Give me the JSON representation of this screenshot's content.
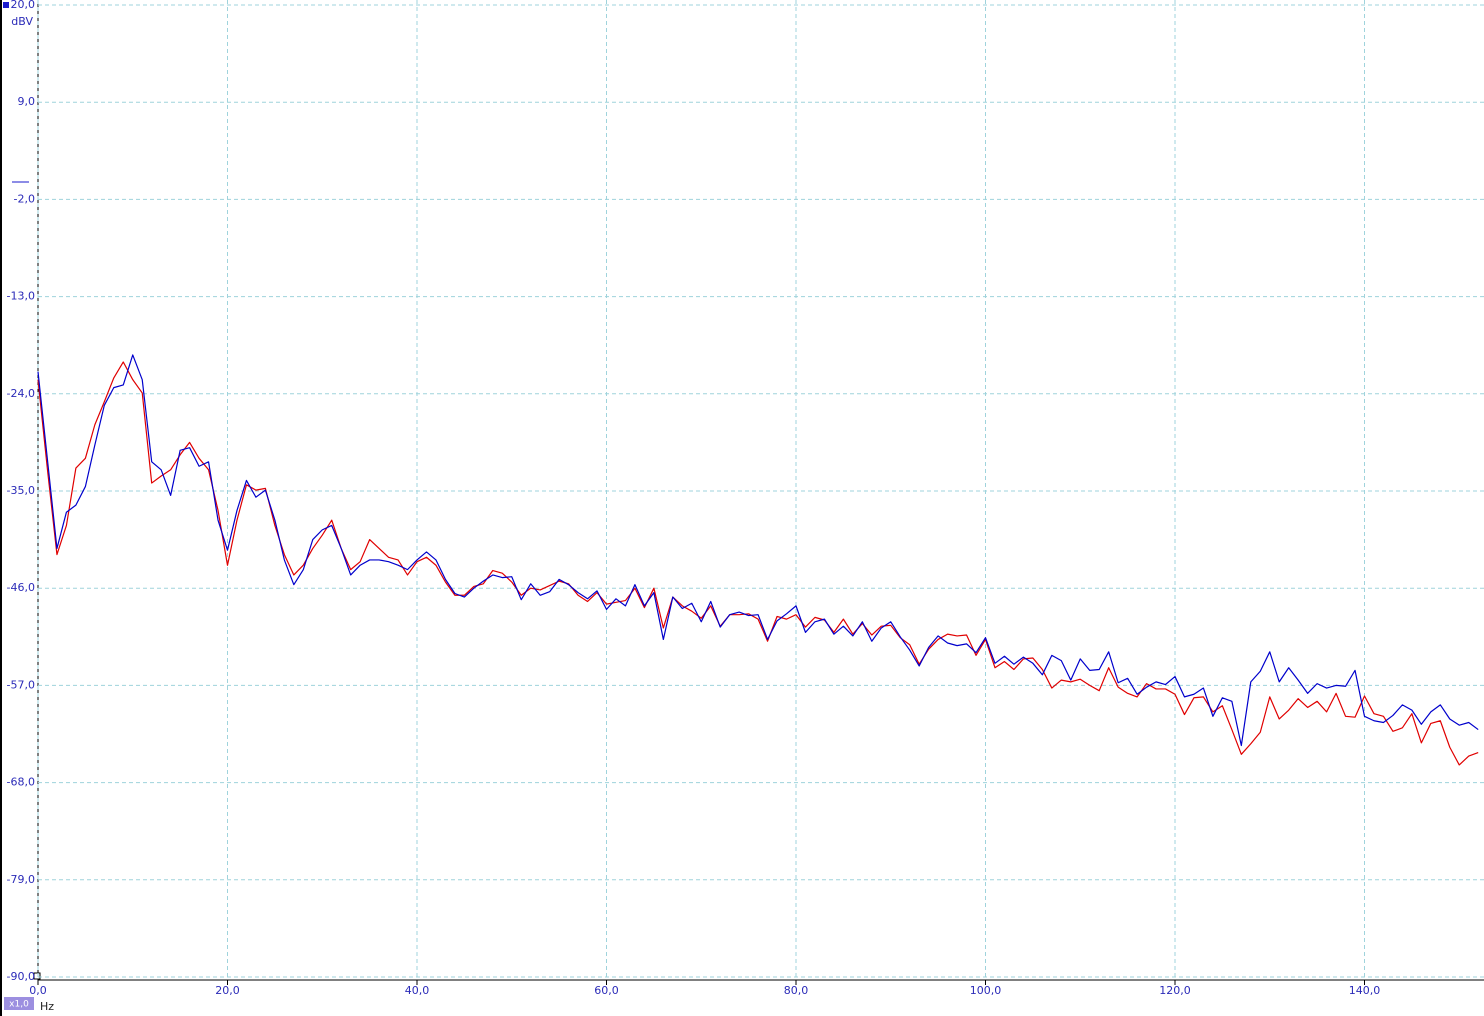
{
  "chart_data": {
    "type": "line",
    "y_unit": "dBV",
    "x_unit": "Hz",
    "zoom": "x1,0",
    "xlim": [
      0,
      152.6
    ],
    "ylim": [
      -90,
      20
    ],
    "xticks": [
      {
        "value": 0,
        "label": "0,0"
      },
      {
        "value": 20,
        "label": "20,0"
      },
      {
        "value": 40,
        "label": "40,0"
      },
      {
        "value": 60,
        "label": "60,0"
      },
      {
        "value": 80,
        "label": "80,0"
      },
      {
        "value": 100,
        "label": "100,0"
      },
      {
        "value": 120,
        "label": "120,0"
      },
      {
        "value": 140,
        "label": "140,0"
      }
    ],
    "yticks": [
      {
        "value": 20,
        "label": "20,0"
      },
      {
        "value": 9,
        "label": "9,0"
      },
      {
        "value": -2,
        "label": "-2,0"
      },
      {
        "value": -13,
        "label": "-13,0"
      },
      {
        "value": -24,
        "label": "-24,0"
      },
      {
        "value": -35,
        "label": "-35,0"
      },
      {
        "value": -46,
        "label": "-46,0"
      },
      {
        "value": -57,
        "label": "-57,0"
      },
      {
        "value": -68,
        "label": "-68,0"
      },
      {
        "value": -79,
        "label": "-79,0"
      },
      {
        "value": -90,
        "label": "-90,0"
      }
    ],
    "grid": true,
    "x": [
      0,
      1,
      2,
      3,
      4,
      5,
      6,
      7,
      8,
      9,
      10,
      11,
      12,
      13,
      14,
      15,
      16,
      17,
      18,
      19,
      20,
      21,
      22,
      23,
      24,
      25,
      26,
      27,
      28,
      29,
      30,
      31,
      32,
      33,
      34,
      35,
      36,
      37,
      38,
      39,
      40,
      41,
      42,
      43,
      44,
      45,
      46,
      47,
      48,
      49,
      50,
      51,
      52,
      53,
      54,
      55,
      56,
      57,
      58,
      59,
      60,
      61,
      62,
      63,
      64,
      65,
      66,
      67,
      68,
      69,
      70,
      71,
      72,
      73,
      74,
      75,
      76,
      77,
      78,
      79,
      80,
      81,
      82,
      83,
      84,
      85,
      86,
      87,
      88,
      89,
      90,
      91,
      92,
      93,
      94,
      95,
      96,
      97,
      98,
      99,
      100,
      101,
      102,
      103,
      104,
      105,
      106,
      107,
      108,
      109,
      110,
      111,
      112,
      113,
      114,
      115,
      116,
      117,
      118,
      119,
      120,
      121,
      122,
      123,
      124,
      125,
      126,
      127,
      128,
      129,
      130,
      131,
      132,
      133,
      134,
      135,
      136,
      137,
      138,
      139,
      140,
      141,
      142,
      143,
      144,
      145,
      146,
      147,
      148,
      149,
      150,
      151,
      152
    ],
    "series": [
      {
        "color": "#e00000",
        "values": [
          -22.4,
          -32.6,
          -42.2,
          -38.9,
          -32.4,
          -31.3,
          -27.5,
          -24.9,
          -22.2,
          -20.4,
          -22.4,
          -23.9,
          -34.1,
          -33.3,
          -32.6,
          -30.9,
          -29.5,
          -31.3,
          -32.6,
          -37.2,
          -43.4,
          -38.3,
          -34.3,
          -34.9,
          -34.7,
          -38.9,
          -42.2,
          -44.5,
          -43.4,
          -41.5,
          -40.0,
          -38.3,
          -41.5,
          -43.9,
          -43.0,
          -40.5,
          -41.5,
          -42.5,
          -42.8,
          -44.5,
          -43.0,
          -42.5,
          -43.4,
          -45.3,
          -46.8,
          -46.8,
          -45.8,
          -45.5,
          -44.0,
          -44.3,
          -45.3,
          -46.8,
          -46.0,
          -46.2,
          -45.7,
          -45.2,
          -45.5,
          -46.8,
          -47.5,
          -46.5,
          -47.8,
          -47.6,
          -47.4,
          -46.0,
          -48.2,
          -46.0,
          -50.5,
          -47.0,
          -48.0,
          -48.6,
          -49.4,
          -48.0,
          -50.3,
          -49.0,
          -49.0,
          -48.9,
          -49.5,
          -52.0,
          -49.2,
          -49.5,
          -49.0,
          -50.4,
          -49.3,
          -49.6,
          -51.0,
          -49.5,
          -51.2,
          -50.0,
          -51.3,
          -50.3,
          -50.2,
          -51.6,
          -52.4,
          -54.6,
          -52.9,
          -51.8,
          -51.2,
          -51.4,
          -51.3,
          -53.6,
          -51.8,
          -55.0,
          -54.3,
          -55.2,
          -54.0,
          -53.9,
          -55.2,
          -57.3,
          -56.4,
          -56.6,
          -56.3,
          -57.0,
          -57.6,
          -55.0,
          -57.2,
          -57.9,
          -58.3,
          -56.8,
          -57.4,
          -57.4,
          -58.0,
          -60.3,
          -58.4,
          -58.3,
          -60.0,
          -59.3,
          -62.0,
          -64.8,
          -63.6,
          -62.3,
          -58.3,
          -60.8,
          -59.8,
          -58.5,
          -59.5,
          -58.8,
          -60.0,
          -57.9,
          -60.5,
          -60.6,
          -58.2,
          -60.2,
          -60.5,
          -62.2,
          -61.8,
          -60.2,
          -63.5,
          -61.3,
          -61.0,
          -64.0,
          -66.0,
          -65.0,
          -64.6
        ]
      },
      {
        "color": "#0000cc",
        "values": [
          -21.5,
          -31.5,
          -41.5,
          -37.4,
          -36.6,
          -34.5,
          -29.8,
          -25.3,
          -23.3,
          -23.0,
          -19.6,
          -22.4,
          -31.7,
          -32.6,
          -35.5,
          -30.4,
          -30.1,
          -32.2,
          -31.7,
          -38.3,
          -41.7,
          -37.2,
          -33.8,
          -35.7,
          -34.9,
          -38.3,
          -42.8,
          -45.6,
          -43.9,
          -40.5,
          -39.4,
          -38.9,
          -41.5,
          -44.5,
          -43.4,
          -42.8,
          -42.8,
          -43.0,
          -43.4,
          -43.9,
          -42.8,
          -41.9,
          -42.8,
          -45.0,
          -46.6,
          -47.0,
          -46.0,
          -45.2,
          -44.5,
          -44.8,
          -44.7,
          -47.3,
          -45.5,
          -46.8,
          -46.4,
          -45.0,
          -45.6,
          -46.5,
          -47.2,
          -46.3,
          -48.4,
          -47.2,
          -48.0,
          -45.6,
          -48.0,
          -46.5,
          -51.8,
          -47.0,
          -48.3,
          -47.7,
          -49.8,
          -47.5,
          -50.4,
          -49.0,
          -48.7,
          -49.1,
          -49.0,
          -51.8,
          -49.7,
          -48.9,
          -48.0,
          -51.0,
          -49.8,
          -49.5,
          -51.2,
          -50.3,
          -51.4,
          -49.8,
          -52.0,
          -50.5,
          -49.8,
          -51.5,
          -53.0,
          -54.8,
          -52.7,
          -51.4,
          -52.2,
          -52.5,
          -52.3,
          -53.3,
          -51.6,
          -54.5,
          -53.7,
          -54.6,
          -53.8,
          -54.5,
          -55.8,
          -53.6,
          -54.2,
          -56.4,
          -54.0,
          -55.3,
          -55.2,
          -53.2,
          -56.7,
          -56.2,
          -58.0,
          -57.2,
          -56.6,
          -56.9,
          -56.0,
          -58.3,
          -58.0,
          -57.3,
          -60.5,
          -58.4,
          -58.8,
          -63.8,
          -56.6,
          -55.4,
          -53.2,
          -56.6,
          -55.0,
          -56.4,
          -57.9,
          -56.8,
          -57.3,
          -57.0,
          -57.1,
          -55.3,
          -60.5,
          -61.0,
          -61.2,
          -60.4,
          -59.2,
          -59.8,
          -61.4,
          -60.0,
          -59.2,
          -60.8,
          -61.5,
          -61.2,
          -62.0
        ]
      }
    ]
  }
}
